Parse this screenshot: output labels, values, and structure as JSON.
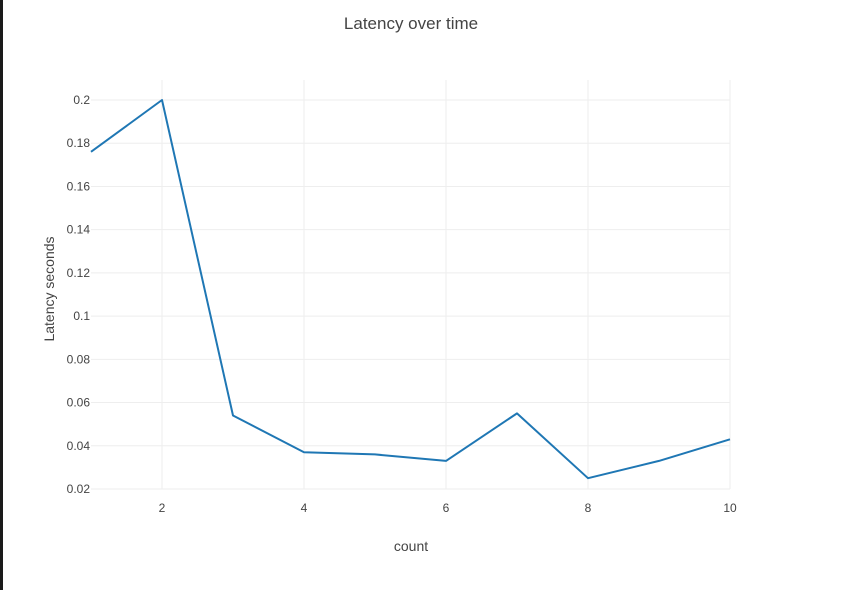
{
  "chart_data": {
    "type": "line",
    "title": "Latency over time",
    "xlabel": "count",
    "ylabel": "Latency seconds",
    "x": [
      1,
      2,
      3,
      4,
      5,
      6,
      7,
      8,
      9,
      10
    ],
    "series": [
      {
        "name": "Latency",
        "values": [
          0.176,
          0.2,
          0.054,
          0.037,
          0.036,
          0.033,
          0.055,
          0.025,
          0.033,
          0.043
        ]
      }
    ],
    "xlim": [
      1,
      10
    ],
    "ylim": [
      0.02,
      0.2
    ],
    "x_ticks": [
      2,
      4,
      6,
      8,
      10
    ],
    "y_ticks": [
      0.02,
      0.04,
      0.06,
      0.08,
      0.1,
      0.12,
      0.14,
      0.16,
      0.18,
      0.2
    ],
    "x_tick_labels": [
      "2",
      "4",
      "6",
      "8",
      "10"
    ],
    "y_tick_labels": [
      "0.02",
      "0.04",
      "0.06",
      "0.08",
      "0.1",
      "0.12",
      "0.14",
      "0.16",
      "0.18",
      "0.2"
    ],
    "grid": true,
    "colors": {
      "line": "#1f77b4",
      "grid": "#eeeeee",
      "text": "#444444"
    }
  }
}
